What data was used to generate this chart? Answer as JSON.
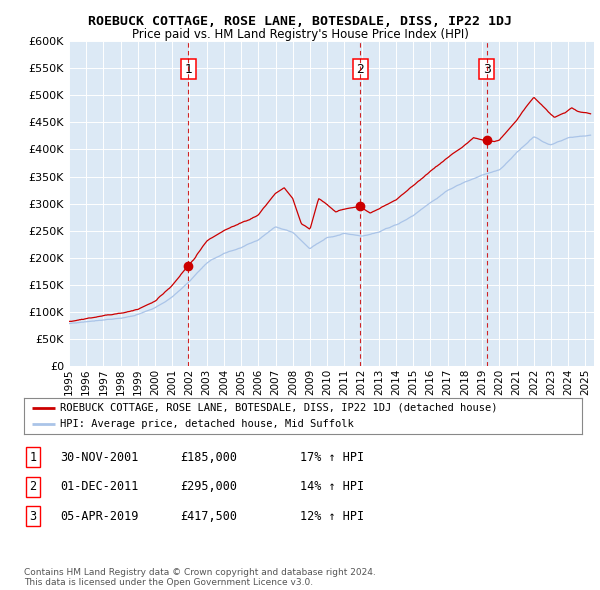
{
  "title": "ROEBUCK COTTAGE, ROSE LANE, BOTESDALE, DISS, IP22 1DJ",
  "subtitle": "Price paid vs. HM Land Registry's House Price Index (HPI)",
  "plot_bg_color": "#dce9f5",
  "hpi_line_color": "#aac4e8",
  "price_line_color": "#cc0000",
  "sale_marker_color": "#cc0000",
  "vline_color": "#cc0000",
  "ylim": [
    0,
    600000
  ],
  "yticks": [
    0,
    50000,
    100000,
    150000,
    200000,
    250000,
    300000,
    350000,
    400000,
    450000,
    500000,
    550000,
    600000
  ],
  "xlim_start": 1995.0,
  "xlim_end": 2025.5,
  "xtick_years": [
    1995,
    1996,
    1997,
    1998,
    1999,
    2000,
    2001,
    2002,
    2003,
    2004,
    2005,
    2006,
    2007,
    2008,
    2009,
    2010,
    2011,
    2012,
    2013,
    2014,
    2015,
    2016,
    2017,
    2018,
    2019,
    2020,
    2021,
    2022,
    2023,
    2024,
    2025
  ],
  "sale_dates": [
    2001.92,
    2011.92,
    2019.27
  ],
  "sale_prices": [
    185000,
    295000,
    417500
  ],
  "sale_labels": [
    "1",
    "2",
    "3"
  ],
  "vline_x": [
    2001.92,
    2011.92,
    2019.27
  ],
  "legend_line1": "ROEBUCK COTTAGE, ROSE LANE, BOTESDALE, DISS, IP22 1DJ (detached house)",
  "legend_line2": "HPI: Average price, detached house, Mid Suffolk",
  "table_rows": [
    [
      "1",
      "30-NOV-2001",
      "£185,000",
      "17% ↑ HPI"
    ],
    [
      "2",
      "01-DEC-2011",
      "£295,000",
      "14% ↑ HPI"
    ],
    [
      "3",
      "05-APR-2019",
      "£417,500",
      "12% ↑ HPI"
    ]
  ],
  "footnote": "Contains HM Land Registry data © Crown copyright and database right 2024.\nThis data is licensed under the Open Government Licence v3.0."
}
